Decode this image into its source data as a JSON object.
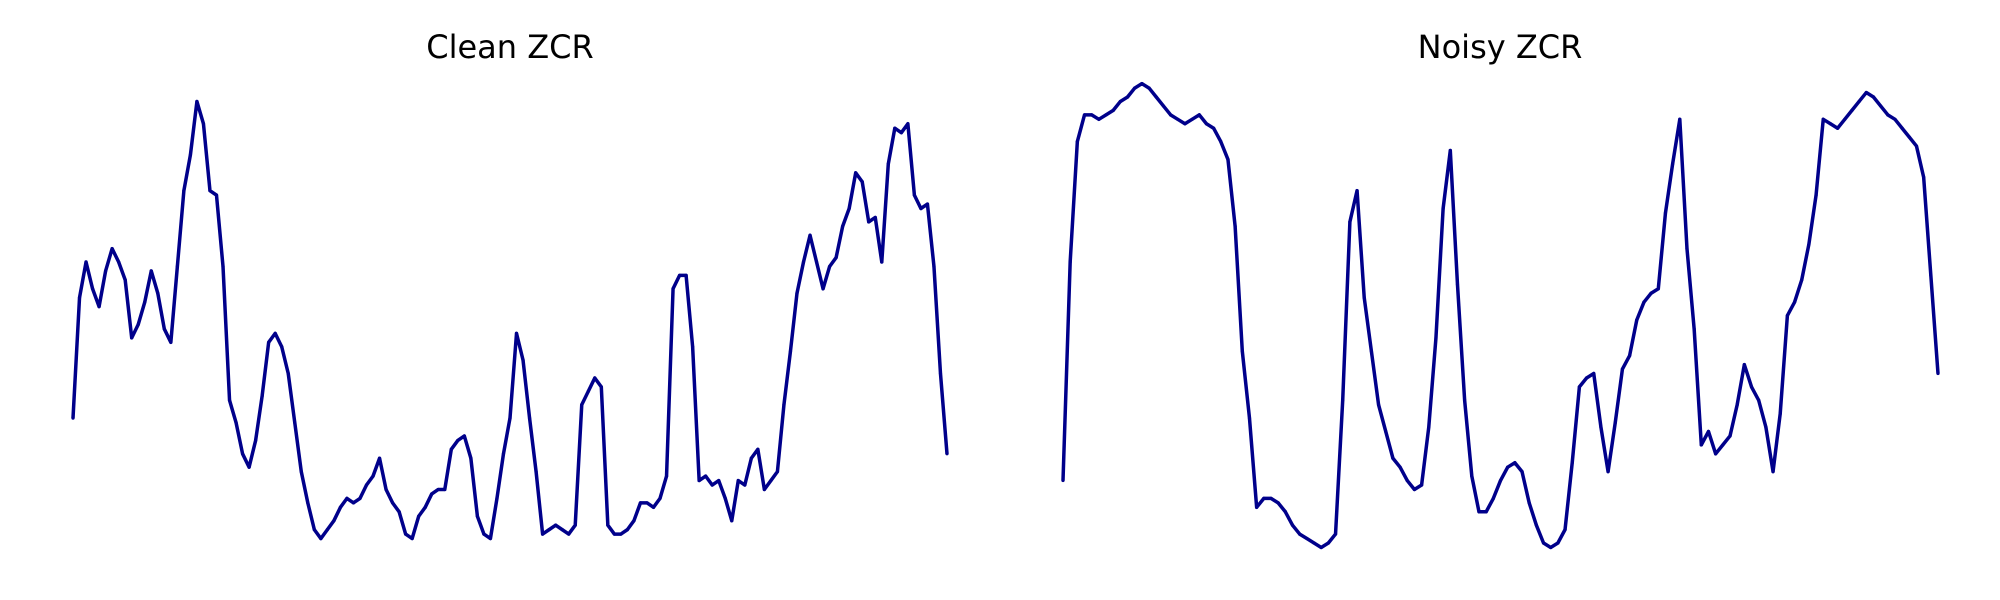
{
  "chart_data": [
    {
      "type": "line",
      "title": "Clean ZCR",
      "xlabel": "",
      "ylabel": "",
      "grid": false,
      "axes_visible": false,
      "color": "#00008B",
      "ylim": [
        0,
        1
      ],
      "values": [
        0.28,
        0.55,
        0.63,
        0.57,
        0.53,
        0.61,
        0.66,
        0.63,
        0.59,
        0.46,
        0.49,
        0.54,
        0.61,
        0.56,
        0.48,
        0.45,
        0.62,
        0.79,
        0.87,
        0.99,
        0.94,
        0.79,
        0.78,
        0.62,
        0.32,
        0.27,
        0.2,
        0.17,
        0.23,
        0.33,
        0.45,
        0.47,
        0.44,
        0.38,
        0.27,
        0.16,
        0.09,
        0.03,
        0.01,
        0.03,
        0.05,
        0.08,
        0.1,
        0.09,
        0.1,
        0.13,
        0.15,
        0.19,
        0.12,
        0.09,
        0.07,
        0.02,
        0.01,
        0.06,
        0.08,
        0.11,
        0.12,
        0.12,
        0.21,
        0.23,
        0.24,
        0.19,
        0.06,
        0.02,
        0.01,
        0.1,
        0.2,
        0.28,
        0.47,
        0.41,
        0.28,
        0.16,
        0.02,
        0.03,
        0.04,
        0.03,
        0.02,
        0.04,
        0.31,
        0.34,
        0.37,
        0.35,
        0.04,
        0.02,
        0.02,
        0.03,
        0.05,
        0.09,
        0.09,
        0.08,
        0.1,
        0.15,
        0.57,
        0.6,
        0.6,
        0.44,
        0.14,
        0.15,
        0.13,
        0.14,
        0.1,
        0.05,
        0.14,
        0.13,
        0.19,
        0.21,
        0.12,
        0.14,
        0.16,
        0.31,
        0.43,
        0.56,
        0.63,
        0.69,
        0.63,
        0.57,
        0.62,
        0.64,
        0.71,
        0.75,
        0.83,
        0.81,
        0.72,
        0.73,
        0.63,
        0.85,
        0.93,
        0.92,
        0.94,
        0.78,
        0.75,
        0.76,
        0.62,
        0.38,
        0.2
      ]
    },
    {
      "type": "line",
      "title": "Noisy ZCR",
      "xlabel": "",
      "ylabel": "",
      "grid": false,
      "axes_visible": false,
      "color": "#00008B",
      "ylim": [
        0,
        1
      ],
      "values": [
        0.14,
        0.63,
        0.9,
        0.96,
        0.96,
        0.95,
        0.96,
        0.97,
        0.99,
        1.0,
        1.02,
        1.03,
        1.02,
        1.0,
        0.98,
        0.96,
        0.95,
        0.94,
        0.95,
        0.96,
        0.94,
        0.93,
        0.9,
        0.86,
        0.71,
        0.43,
        0.28,
        0.08,
        0.1,
        0.1,
        0.09,
        0.07,
        0.04,
        0.02,
        0.01,
        0.0,
        -0.01,
        0.0,
        0.02,
        0.32,
        0.72,
        0.79,
        0.55,
        0.43,
        0.31,
        0.25,
        0.19,
        0.17,
        0.14,
        0.12,
        0.13,
        0.26,
        0.46,
        0.75,
        0.88,
        0.58,
        0.32,
        0.15,
        0.07,
        0.07,
        0.1,
        0.14,
        0.17,
        0.18,
        0.16,
        0.09,
        0.04,
        0.0,
        -0.01,
        0.0,
        0.03,
        0.18,
        0.35,
        0.37,
        0.38,
        0.26,
        0.16,
        0.27,
        0.39,
        0.42,
        0.5,
        0.54,
        0.56,
        0.57,
        0.74,
        0.85,
        0.95,
        0.66,
        0.48,
        0.22,
        0.25,
        0.2,
        0.22,
        0.24,
        0.31,
        0.4,
        0.35,
        0.32,
        0.26,
        0.16,
        0.29,
        0.51,
        0.54,
        0.59,
        0.67,
        0.78,
        0.95,
        0.94,
        0.93,
        0.95,
        0.97,
        0.99,
        1.01,
        1.0,
        0.98,
        0.96,
        0.95,
        0.93,
        0.91,
        0.89,
        0.82,
        0.6,
        0.38
      ]
    }
  ]
}
